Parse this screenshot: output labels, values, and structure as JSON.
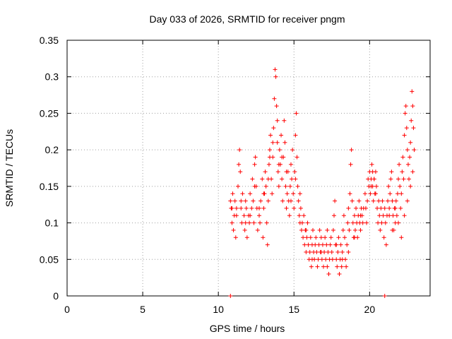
{
  "chart_data": {
    "type": "scatter",
    "title": "Day 033 of 2026, SRMTID for receiver pngm",
    "xlabel": "GPS time / hours",
    "ylabel": "SRMTID / TECUs",
    "xlim": [
      0,
      24
    ],
    "ylim": [
      0,
      0.35
    ],
    "xticks": [
      0,
      5,
      10,
      15,
      20
    ],
    "xtick_labels": [
      "0",
      "5",
      "10",
      "15",
      "20"
    ],
    "yticks": [
      0,
      0.05,
      0.1,
      0.15,
      0.2,
      0.25,
      0.3,
      0.35
    ],
    "ytick_labels": [
      "0",
      "0.05",
      "0.1",
      "0.15",
      "0.2",
      "0.25",
      "0.3",
      "0.35"
    ],
    "grid": true,
    "marker": "plus",
    "color": "#ff0000",
    "series": [
      {
        "name": "SRMTID",
        "points": [
          [
            10.8,
            0.0
          ],
          [
            21.0,
            0.0
          ],
          [
            10.8,
            0.13
          ],
          [
            10.85,
            0.12
          ],
          [
            10.9,
            0.1
          ],
          [
            10.95,
            0.14
          ],
          [
            11.0,
            0.09
          ],
          [
            11.05,
            0.11
          ],
          [
            11.1,
            0.13
          ],
          [
            11.15,
            0.08
          ],
          [
            11.2,
            0.12
          ],
          [
            11.3,
            0.15
          ],
          [
            11.35,
            0.18
          ],
          [
            11.4,
            0.2
          ],
          [
            11.45,
            0.17
          ],
          [
            11.5,
            0.12
          ],
          [
            11.55,
            0.1
          ],
          [
            11.6,
            0.14
          ],
          [
            11.7,
            0.11
          ],
          [
            11.75,
            0.09
          ],
          [
            11.8,
            0.13
          ],
          [
            11.85,
            0.12
          ],
          [
            11.9,
            0.08
          ],
          [
            12.0,
            0.11
          ],
          [
            12.05,
            0.1
          ],
          [
            12.1,
            0.14
          ],
          [
            12.2,
            0.12
          ],
          [
            12.25,
            0.16
          ],
          [
            12.3,
            0.13
          ],
          [
            12.35,
            0.1
          ],
          [
            12.4,
            0.18
          ],
          [
            12.45,
            0.19
          ],
          [
            12.5,
            0.15
          ],
          [
            12.55,
            0.12
          ],
          [
            12.6,
            0.09
          ],
          [
            12.7,
            0.11
          ],
          [
            12.75,
            0.1
          ],
          [
            12.8,
            0.13
          ],
          [
            12.9,
            0.16
          ],
          [
            12.95,
            0.08
          ],
          [
            13.0,
            0.12
          ],
          [
            13.05,
            0.14
          ],
          [
            13.1,
            0.17
          ],
          [
            13.15,
            0.15
          ],
          [
            13.2,
            0.1
          ],
          [
            13.25,
            0.07
          ],
          [
            13.3,
            0.13
          ],
          [
            13.35,
            0.18
          ],
          [
            13.4,
            0.2
          ],
          [
            13.45,
            0.22
          ],
          [
            13.5,
            0.16
          ],
          [
            13.55,
            0.14
          ],
          [
            13.6,
            0.19
          ],
          [
            13.65,
            0.23
          ],
          [
            13.7,
            0.27
          ],
          [
            13.75,
            0.31
          ],
          [
            13.8,
            0.3
          ],
          [
            13.85,
            0.26
          ],
          [
            13.9,
            0.21
          ],
          [
            13.95,
            0.17
          ],
          [
            14.0,
            0.15
          ],
          [
            14.05,
            0.2
          ],
          [
            14.1,
            0.18
          ],
          [
            14.15,
            0.22
          ],
          [
            14.2,
            0.16
          ],
          [
            14.25,
            0.13
          ],
          [
            14.3,
            0.19
          ],
          [
            14.35,
            0.24
          ],
          [
            14.4,
            0.21
          ],
          [
            14.45,
            0.15
          ],
          [
            14.5,
            0.12
          ],
          [
            14.55,
            0.14
          ],
          [
            14.6,
            0.17
          ],
          [
            14.65,
            0.13
          ],
          [
            14.7,
            0.11
          ],
          [
            14.75,
            0.15
          ],
          [
            14.8,
            0.18
          ],
          [
            14.85,
            0.16
          ],
          [
            14.9,
            0.2
          ],
          [
            14.95,
            0.14
          ],
          [
            15.0,
            0.12
          ],
          [
            15.05,
            0.17
          ],
          [
            15.1,
            0.22
          ],
          [
            15.15,
            0.25
          ],
          [
            15.2,
            0.19
          ],
          [
            15.25,
            0.15
          ],
          [
            15.3,
            0.13
          ],
          [
            15.35,
            0.11
          ],
          [
            15.4,
            0.14
          ],
          [
            15.45,
            0.12
          ],
          [
            15.5,
            0.09
          ],
          [
            15.55,
            0.1
          ],
          [
            15.6,
            0.08
          ],
          [
            15.65,
            0.11
          ],
          [
            15.7,
            0.07
          ],
          [
            15.75,
            0.09
          ],
          [
            15.8,
            0.06
          ],
          [
            15.85,
            0.08
          ],
          [
            15.9,
            0.1
          ],
          [
            15.95,
            0.07
          ],
          [
            16.0,
            0.05
          ],
          [
            16.05,
            0.06
          ],
          [
            16.1,
            0.08
          ],
          [
            16.15,
            0.04
          ],
          [
            16.2,
            0.07
          ],
          [
            16.25,
            0.09
          ],
          [
            16.3,
            0.06
          ],
          [
            16.35,
            0.05
          ],
          [
            16.4,
            0.07
          ],
          [
            16.45,
            0.08
          ],
          [
            16.5,
            0.06
          ],
          [
            16.55,
            0.04
          ],
          [
            16.6,
            0.05
          ],
          [
            16.65,
            0.07
          ],
          [
            16.7,
            0.09
          ],
          [
            16.75,
            0.06
          ],
          [
            16.8,
            0.08
          ],
          [
            16.85,
            0.05
          ],
          [
            16.9,
            0.07
          ],
          [
            16.95,
            0.04
          ],
          [
            17.0,
            0.06
          ],
          [
            17.05,
            0.08
          ],
          [
            17.1,
            0.05
          ],
          [
            17.15,
            0.07
          ],
          [
            17.2,
            0.09
          ],
          [
            17.25,
            0.06
          ],
          [
            17.3,
            0.03
          ],
          [
            17.35,
            0.05
          ],
          [
            17.4,
            0.07
          ],
          [
            17.45,
            0.08
          ],
          [
            17.5,
            0.06
          ],
          [
            17.55,
            0.05
          ],
          [
            17.6,
            0.09
          ],
          [
            17.65,
            0.11
          ],
          [
            17.7,
            0.13
          ],
          [
            17.75,
            0.07
          ],
          [
            17.8,
            0.05
          ],
          [
            17.85,
            0.04
          ],
          [
            17.9,
            0.06
          ],
          [
            17.95,
            0.08
          ],
          [
            18.0,
            0.03
          ],
          [
            18.05,
            0.05
          ],
          [
            18.1,
            0.07
          ],
          [
            18.15,
            0.04
          ],
          [
            18.2,
            0.06
          ],
          [
            18.25,
            0.09
          ],
          [
            18.3,
            0.11
          ],
          [
            18.35,
            0.08
          ],
          [
            18.4,
            0.05
          ],
          [
            18.45,
            0.04
          ],
          [
            18.5,
            0.07
          ],
          [
            18.55,
            0.1
          ],
          [
            18.6,
            0.12
          ],
          [
            18.65,
            0.09
          ],
          [
            18.7,
            0.14
          ],
          [
            18.75,
            0.18
          ],
          [
            18.8,
            0.2
          ],
          [
            18.85,
            0.13
          ],
          [
            18.9,
            0.1
          ],
          [
            18.95,
            0.08
          ],
          [
            19.0,
            0.11
          ],
          [
            19.05,
            0.09
          ],
          [
            19.1,
            0.12
          ],
          [
            19.15,
            0.1
          ],
          [
            19.2,
            0.08
          ],
          [
            19.25,
            0.11
          ],
          [
            19.3,
            0.13
          ],
          [
            19.35,
            0.1
          ],
          [
            19.4,
            0.09
          ],
          [
            19.45,
            0.12
          ],
          [
            19.5,
            0.11
          ],
          [
            19.55,
            0.1
          ],
          [
            19.6,
            0.12
          ],
          [
            19.7,
            0.14
          ],
          [
            19.75,
            0.12
          ],
          [
            19.8,
            0.1
          ],
          [
            19.85,
            0.13
          ],
          [
            19.9,
            0.16
          ],
          [
            19.95,
            0.15
          ],
          [
            20.0,
            0.17
          ],
          [
            20.05,
            0.14
          ],
          [
            20.1,
            0.16
          ],
          [
            20.15,
            0.18
          ],
          [
            20.2,
            0.15
          ],
          [
            20.25,
            0.13
          ],
          [
            20.3,
            0.16
          ],
          [
            20.35,
            0.14
          ],
          [
            20.4,
            0.17
          ],
          [
            20.45,
            0.15
          ],
          [
            20.5,
            0.12
          ],
          [
            20.55,
            0.1
          ],
          [
            20.6,
            0.13
          ],
          [
            20.65,
            0.11
          ],
          [
            20.7,
            0.09
          ],
          [
            20.75,
            0.12
          ],
          [
            20.8,
            0.1
          ],
          [
            20.85,
            0.13
          ],
          [
            20.9,
            0.11
          ],
          [
            20.95,
            0.08
          ],
          [
            21.0,
            0.12
          ],
          [
            21.05,
            0.1
          ],
          [
            21.1,
            0.07
          ],
          [
            21.15,
            0.11
          ],
          [
            21.2,
            0.13
          ],
          [
            21.25,
            0.15
          ],
          [
            21.3,
            0.12
          ],
          [
            21.35,
            0.14
          ],
          [
            21.4,
            0.16
          ],
          [
            21.45,
            0.17
          ],
          [
            21.5,
            0.13
          ],
          [
            21.55,
            0.11
          ],
          [
            21.6,
            0.09
          ],
          [
            21.65,
            0.12
          ],
          [
            21.7,
            0.1
          ],
          [
            21.75,
            0.13
          ],
          [
            21.8,
            0.11
          ],
          [
            21.85,
            0.14
          ],
          [
            21.9,
            0.16
          ],
          [
            21.95,
            0.18
          ],
          [
            22.0,
            0.15
          ],
          [
            22.05,
            0.12
          ],
          [
            22.1,
            0.14
          ],
          [
            22.15,
            0.17
          ],
          [
            22.2,
            0.19
          ],
          [
            22.25,
            0.16
          ],
          [
            22.3,
            0.22
          ],
          [
            22.35,
            0.25
          ],
          [
            22.4,
            0.26
          ],
          [
            22.45,
            0.23
          ],
          [
            22.5,
            0.2
          ],
          [
            22.55,
            0.18
          ],
          [
            22.6,
            0.16
          ],
          [
            22.65,
            0.19
          ],
          [
            22.7,
            0.21
          ],
          [
            22.75,
            0.24
          ],
          [
            22.8,
            0.28
          ],
          [
            22.85,
            0.26
          ],
          [
            22.9,
            0.23
          ],
          [
            22.95,
            0.2
          ],
          [
            22.85,
            0.17
          ],
          [
            22.7,
            0.15
          ],
          [
            22.5,
            0.13
          ],
          [
            22.3,
            0.11
          ],
          [
            22.1,
            0.08
          ],
          [
            21.9,
            0.1
          ],
          [
            21.7,
            0.12
          ],
          [
            21.5,
            0.09
          ],
          [
            21.3,
            0.11
          ],
          [
            20.3,
            0.16
          ],
          [
            20.1,
            0.15
          ],
          [
            20.2,
            0.17
          ],
          [
            20.4,
            0.14
          ],
          [
            14.5,
            0.17
          ],
          [
            14.2,
            0.19
          ],
          [
            13.9,
            0.24
          ],
          [
            13.6,
            0.21
          ],
          [
            13.3,
            0.16
          ],
          [
            13.0,
            0.14
          ],
          [
            12.7,
            0.12
          ],
          [
            12.4,
            0.15
          ],
          [
            12.1,
            0.11
          ],
          [
            11.8,
            0.1
          ],
          [
            11.5,
            0.13
          ],
          [
            11.2,
            0.11
          ],
          [
            10.9,
            0.12
          ],
          [
            16.2,
            0.05
          ],
          [
            16.8,
            0.06
          ],
          [
            17.2,
            0.04
          ],
          [
            17.8,
            0.07
          ],
          [
            18.2,
            0.05
          ],
          [
            18.6,
            0.06
          ],
          [
            19.0,
            0.08
          ],
          [
            19.4,
            0.11
          ],
          [
            15.8,
            0.09
          ],
          [
            15.4,
            0.1
          ],
          [
            15.1,
            0.16
          ],
          [
            14.8,
            0.13
          ],
          [
            14.0,
            0.18
          ],
          [
            13.4,
            0.19
          ]
        ]
      }
    ]
  }
}
